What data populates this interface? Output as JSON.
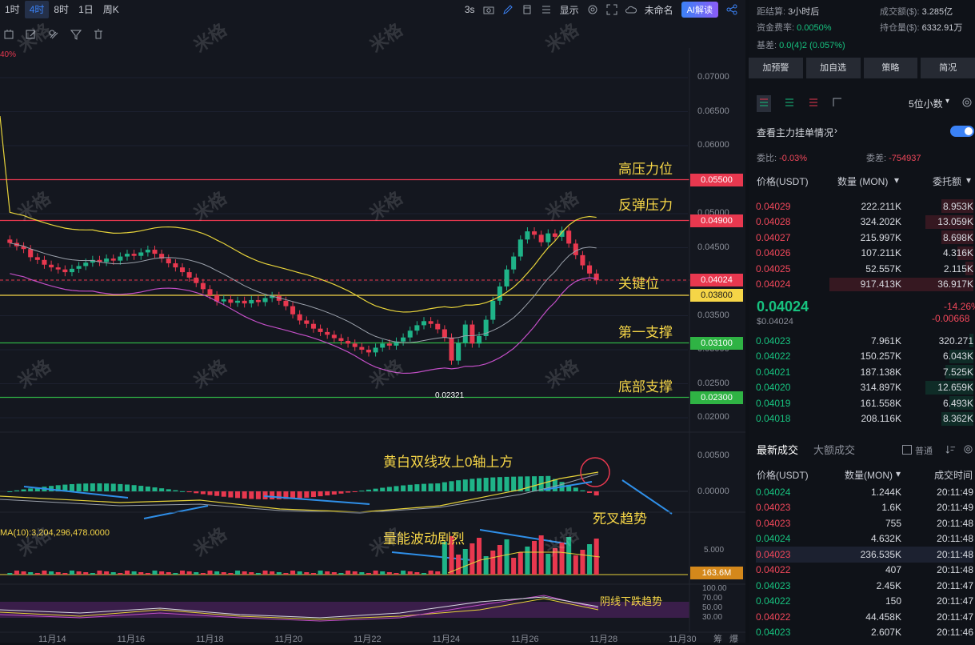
{
  "timeframes": [
    "1时",
    "4时",
    "8时",
    "1日",
    "周K"
  ],
  "active_timeframe_index": 1,
  "toolbar": {
    "interval": "3s",
    "display": "显示",
    "layout_name": "未命名",
    "ai_label": "AI解读"
  },
  "chart": {
    "pct_label": "40%",
    "price_axis": [
      "0.07000",
      "0.06500",
      "0.06000",
      "0.05500",
      "0.05000",
      "0.04500",
      "0.04000",
      "0.03500",
      "0.03000",
      "0.02500",
      "0.02000"
    ],
    "macd_axis": [
      "0.00500",
      "0.00000"
    ],
    "vol_axis_label": "5.000",
    "rsi_axis": [
      "100.00",
      "70.00",
      "50.00",
      "30.00"
    ],
    "x_axis": [
      "11月14",
      "11月16",
      "11月18",
      "11月20",
      "11月22",
      "11月24",
      "11月26",
      "11月28",
      "11月30"
    ],
    "x_axis_extra": [
      "筹",
      "爆"
    ],
    "price_tags": [
      {
        "value": "0.05500",
        "color": "#e8384f"
      },
      {
        "value": "0.04900",
        "color": "#e8384f"
      },
      {
        "value": "0.04024",
        "color": "#e8384f"
      },
      {
        "value": "0.03800",
        "color": "#f5d547",
        "text_color": "#1a1a1a"
      },
      {
        "value": "0.03100",
        "color": "#2fb344"
      },
      {
        "value": "0.02300",
        "color": "#2fb344"
      }
    ],
    "low_label": "0.02321",
    "annotations": {
      "high_resistance": "高压力位",
      "rebound_resistance": "反弹压力",
      "key_level": "关键位",
      "first_support": "第一支撑",
      "bottom_support": "底部支撑",
      "macd_note": "黄白双线攻上0轴上方",
      "death_cross": "死叉趋势",
      "volume_note": "量能波动剧烈",
      "bear_candles": "阴线下跌趋势"
    },
    "ma_label": "MA(10):3,204,296,478.0000",
    "vol_tag": "163.6M",
    "watermark": "米格"
  },
  "stats": {
    "settle_label": "距结算:",
    "settle_value": "3小时后",
    "turnover_label": "成交额($):",
    "turnover_value": "3.285亿",
    "funding_label": "资金费率:",
    "funding_value": "0.0050%",
    "oi_label": "持仓量($):",
    "oi_value": "6332.91万",
    "basis_label": "基差:",
    "basis_value": "0.0(4)2 (0.057%)"
  },
  "action_buttons": [
    "加预警",
    "加自选",
    "策略",
    "简况"
  ],
  "orderbook": {
    "decimals": "5位小数",
    "main_orders": "查看主力挂单情况",
    "ratio_label": "委比:",
    "ratio_value": "-0.03%",
    "diff_label": "委差:",
    "diff_value": "-754937",
    "col_price": "价格(USDT)",
    "col_qty": "数量 (MON)",
    "col_amount": "委托额",
    "asks": [
      {
        "p": "0.04029",
        "q": "222.211K",
        "a": "8.953K"
      },
      {
        "p": "0.04028",
        "q": "324.202K",
        "a": "13.059K"
      },
      {
        "p": "0.04027",
        "q": "215.997K",
        "a": "8.698K"
      },
      {
        "p": "0.04026",
        "q": "107.211K",
        "a": "4.316K"
      },
      {
        "p": "0.04025",
        "q": "52.557K",
        "a": "2.115K"
      },
      {
        "p": "0.04024",
        "q": "917.413K",
        "a": "36.917K"
      }
    ],
    "last_price": "0.04024",
    "last_usd": "$0.04024",
    "change_pct": "-14.26%",
    "change_abs": "-0.00668",
    "bids": [
      {
        "p": "0.04023",
        "q": "7.961K",
        "a": "320.271"
      },
      {
        "p": "0.04022",
        "q": "150.257K",
        "a": "6.043K"
      },
      {
        "p": "0.04021",
        "q": "187.138K",
        "a": "7.525K"
      },
      {
        "p": "0.04020",
        "q": "314.897K",
        "a": "12.659K"
      },
      {
        "p": "0.04019",
        "q": "161.558K",
        "a": "6.493K"
      },
      {
        "p": "0.04018",
        "q": "208.116K",
        "a": "8.362K"
      }
    ]
  },
  "trades": {
    "tab_latest": "最新成交",
    "tab_large": "大额成交",
    "normal": "普通",
    "col_price": "价格(USDT)",
    "col_qty": "数量(MON)",
    "col_time": "成交时间",
    "rows": [
      {
        "p": "0.04024",
        "q": "1.244K",
        "t": "20:11:49",
        "side": "buy"
      },
      {
        "p": "0.04023",
        "q": "1.6K",
        "t": "20:11:49",
        "side": "sell"
      },
      {
        "p": "0.04023",
        "q": "755",
        "t": "20:11:48",
        "side": "sell"
      },
      {
        "p": "0.04024",
        "q": "4.632K",
        "t": "20:11:48",
        "side": "buy"
      },
      {
        "p": "0.04023",
        "q": "236.535K",
        "t": "20:11:48",
        "side": "sell"
      },
      {
        "p": "0.04022",
        "q": "407",
        "t": "20:11:48",
        "side": "sell"
      },
      {
        "p": "0.04023",
        "q": "2.45K",
        "t": "20:11:47",
        "side": "buy"
      },
      {
        "p": "0.04022",
        "q": "150",
        "t": "20:11:47",
        "side": "buy"
      },
      {
        "p": "0.04022",
        "q": "44.458K",
        "t": "20:11:47",
        "side": "sell"
      },
      {
        "p": "0.04023",
        "q": "2.607K",
        "t": "20:11:46",
        "side": "buy"
      }
    ]
  }
}
